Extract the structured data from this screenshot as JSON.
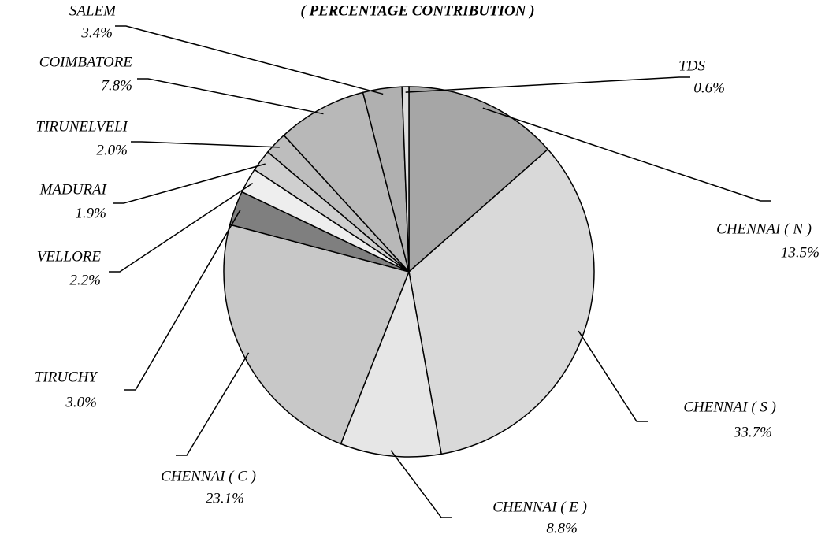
{
  "chart_data": {
    "type": "pie",
    "title": "( PERCENTAGE CONTRIBUTION )",
    "categories": [
      "CHENNAI ( N )",
      "CHENNAI ( S )",
      "CHENNAI ( E )",
      "CHENNAI ( C )",
      "TIRUCHY",
      "VELLORE",
      "MADURAI",
      "TIRUNELVELI",
      "COIMBATORE",
      "SALEM",
      "TDS"
    ],
    "values": [
      13.5,
      33.7,
      8.8,
      23.1,
      3.0,
      2.2,
      1.9,
      2.0,
      7.8,
      3.4,
      0.6
    ],
    "value_labels": [
      "13.5%",
      "33.7%",
      "8.8%",
      "23.1%",
      "3.0%",
      "2.2%",
      "1.9%",
      "2.0%",
      "7.8%",
      "3.4%",
      "0.6%"
    ],
    "colors": [
      "#a6a6a6",
      "#d9d9d9",
      "#e6e6e6",
      "#c8c8c8",
      "#7f7f7f",
      "#eeeeee",
      "#cfcfcf",
      "#bdbdbd",
      "#b8b8b8",
      "#b0b0b0",
      "#dddddd"
    ]
  }
}
